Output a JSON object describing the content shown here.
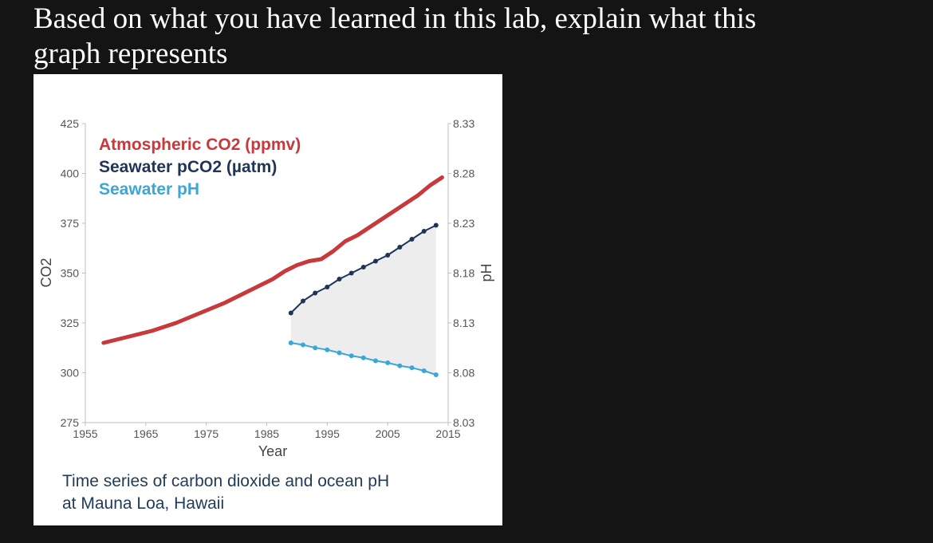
{
  "slide": {
    "title_line1": "Based on what you have learned in this lab, explain what this",
    "title_line2": "graph represents"
  },
  "figure": {
    "caption_line1": "Time series of carbon dioxide and ocean pH",
    "caption_line2": "at Mauna Loa, Hawaii"
  },
  "colors": {
    "atmospheric": "#c8393b",
    "seawater_pco2": "#1f3456",
    "seawater_ph": "#3aa7d9",
    "band_fill": "#ededed",
    "axis": "#bfbfbf",
    "tick_text": "#555555"
  },
  "chart_data": {
    "type": "line",
    "xlabel": "Year",
    "ylabel_left": "CO2",
    "ylabel_right": "pH",
    "xlim": [
      1955,
      2015
    ],
    "ylim_left": [
      275,
      425
    ],
    "ylim_right": [
      8.03,
      8.33
    ],
    "x_ticks": [
      "1955",
      "1965",
      "1975",
      "1985",
      "1995",
      "2005",
      "2015"
    ],
    "y_left_ticks": [
      "425",
      "400",
      "375",
      "350",
      "325",
      "300",
      "275"
    ],
    "y_right_ticks": [
      "8.33",
      "8.28",
      "8.23",
      "8.18",
      "8.13",
      "8.08",
      "8.03"
    ],
    "grid": false,
    "legend_position": "top-left",
    "series": [
      {
        "name": "Atmospheric CO2 (ppmv)",
        "axis": "left",
        "x": [
          1958,
          1962,
          1966,
          1970,
          1974,
          1978,
          1982,
          1986,
          1988,
          1990,
          1992,
          1994,
          1996,
          1998,
          2000,
          2002,
          2004,
          2006,
          2008,
          2010,
          2012,
          2014
        ],
        "y": [
          315,
          318,
          321,
          325,
          330,
          335,
          341,
          347,
          351,
          354,
          356,
          357,
          361,
          366,
          369,
          373,
          377,
          381,
          385,
          389,
          394,
          398
        ]
      },
      {
        "name": "Seawater pCO2 (µatm)",
        "axis": "left",
        "x": [
          1989,
          1991,
          1993,
          1995,
          1997,
          1999,
          2001,
          2003,
          2005,
          2007,
          2009,
          2011,
          2013
        ],
        "y": [
          330,
          336,
          340,
          343,
          347,
          350,
          353,
          356,
          359,
          363,
          367,
          371,
          374
        ]
      },
      {
        "name": "Seawater pH",
        "axis": "right",
        "x": [
          1989,
          1991,
          1993,
          1995,
          1997,
          1999,
          2001,
          2003,
          2005,
          2007,
          2009,
          2011,
          2013
        ],
        "y": [
          8.11,
          8.108,
          8.105,
          8.103,
          8.1,
          8.097,
          8.095,
          8.092,
          8.09,
          8.087,
          8.085,
          8.082,
          8.078
        ]
      }
    ]
  }
}
